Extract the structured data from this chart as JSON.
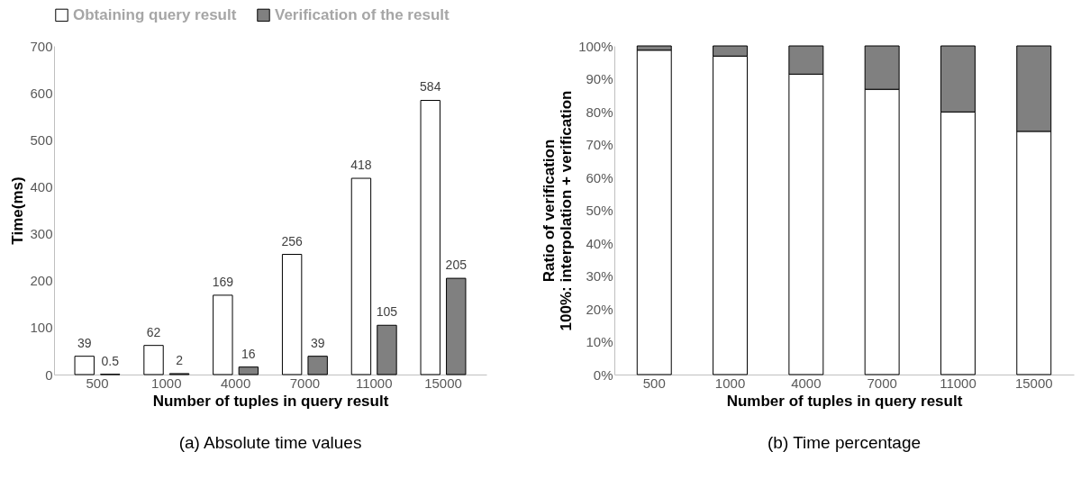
{
  "chart_data": [
    {
      "type": "bar",
      "title": "(a) Absolute time values",
      "xlabel": "Number of tuples in query result",
      "ylabel": "Time(ms)",
      "categories": [
        "500",
        "1000",
        "4000",
        "7000",
        "11000",
        "15000"
      ],
      "series": [
        {
          "name": "Obtaining query result",
          "color": "#ffffff",
          "values": [
            39,
            62,
            169,
            256,
            418,
            584
          ]
        },
        {
          "name": "Verification of the result",
          "color": "#808080",
          "values": [
            0.5,
            2,
            16,
            39,
            105,
            205
          ]
        }
      ],
      "ylim": [
        0,
        700
      ],
      "yticks": [
        0,
        100,
        200,
        300,
        400,
        500,
        600,
        700
      ],
      "data_labels": true,
      "legend": "top",
      "grid": false
    },
    {
      "type": "bar",
      "title": "(b) Time percentage",
      "xlabel": "Number of tuples in query result",
      "ylabel": "Ratio of verification",
      "annotations": [
        "100%: interpolation + verification"
      ],
      "categories": [
        "500",
        "1000",
        "4000",
        "7000",
        "11000",
        "15000"
      ],
      "stacked": true,
      "series": [
        {
          "name": "Obtaining query result",
          "color": "#ffffff",
          "values": [
            98.7,
            96.9,
            91.4,
            86.8,
            79.9,
            74.0
          ]
        },
        {
          "name": "Verification of the result",
          "color": "#808080",
          "values": [
            1.3,
            3.1,
            8.6,
            13.2,
            20.1,
            26.0
          ]
        }
      ],
      "ylim": [
        0,
        100
      ],
      "yticks": [
        {
          "value": 0,
          "label": "0%"
        },
        {
          "value": 10,
          "label": "10%"
        },
        {
          "value": 20,
          "label": "20%"
        },
        {
          "value": 30,
          "label": "30%"
        },
        {
          "value": 40,
          "label": "40%"
        },
        {
          "value": 50,
          "label": "50%"
        },
        {
          "value": 60,
          "label": "60%"
        },
        {
          "value": 70,
          "label": "70%"
        },
        {
          "value": 80,
          "label": "80%"
        },
        {
          "value": 90,
          "label": "90%"
        },
        {
          "value": 100,
          "label": "100%"
        }
      ],
      "legend": "top",
      "grid": false
    }
  ]
}
